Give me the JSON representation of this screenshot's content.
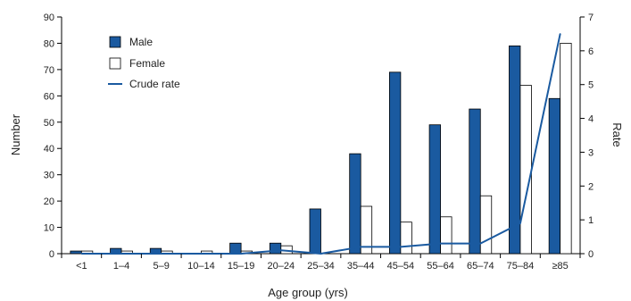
{
  "chart_data": {
    "type": "bar",
    "xlabel": "Age group (yrs)",
    "ylabel_left": "Number",
    "ylabel_right": "Rate",
    "ylim_left": [
      0,
      90
    ],
    "yticks_left": [
      "0",
      "10",
      "20",
      "30",
      "40",
      "50",
      "60",
      "70",
      "80",
      "90"
    ],
    "ylim_right": [
      0,
      7
    ],
    "yticks_right": [
      "0",
      "1",
      "2",
      "3",
      "4",
      "5",
      "6",
      "7"
    ],
    "grid": false,
    "legend_position": "top-left",
    "categories": [
      "<1",
      "1–4",
      "5–9",
      "10–14",
      "15–19",
      "20–24",
      "25–34",
      "35–44",
      "45–54",
      "55–64",
      "65–74",
      "75–84",
      "≥85"
    ],
    "series": [
      {
        "name": "Male",
        "kind": "bar",
        "axis": "left",
        "color": "#1a5aa0",
        "values": [
          1,
          2,
          2,
          0,
          4,
          4,
          17,
          38,
          69,
          49,
          55,
          79,
          59
        ]
      },
      {
        "name": "Female",
        "kind": "bar",
        "axis": "left",
        "color": "#ffffff",
        "values": [
          1,
          1,
          1,
          1,
          1,
          3,
          0,
          18,
          12,
          14,
          22,
          64,
          80
        ]
      },
      {
        "name": "Crude rate",
        "kind": "line",
        "axis": "right",
        "color": "#1a5aa0",
        "values": [
          0.0,
          0.0,
          0.0,
          0.0,
          0.0,
          0.1,
          0.0,
          0.2,
          0.2,
          0.3,
          0.3,
          0.9,
          6.5
        ]
      }
    ]
  }
}
